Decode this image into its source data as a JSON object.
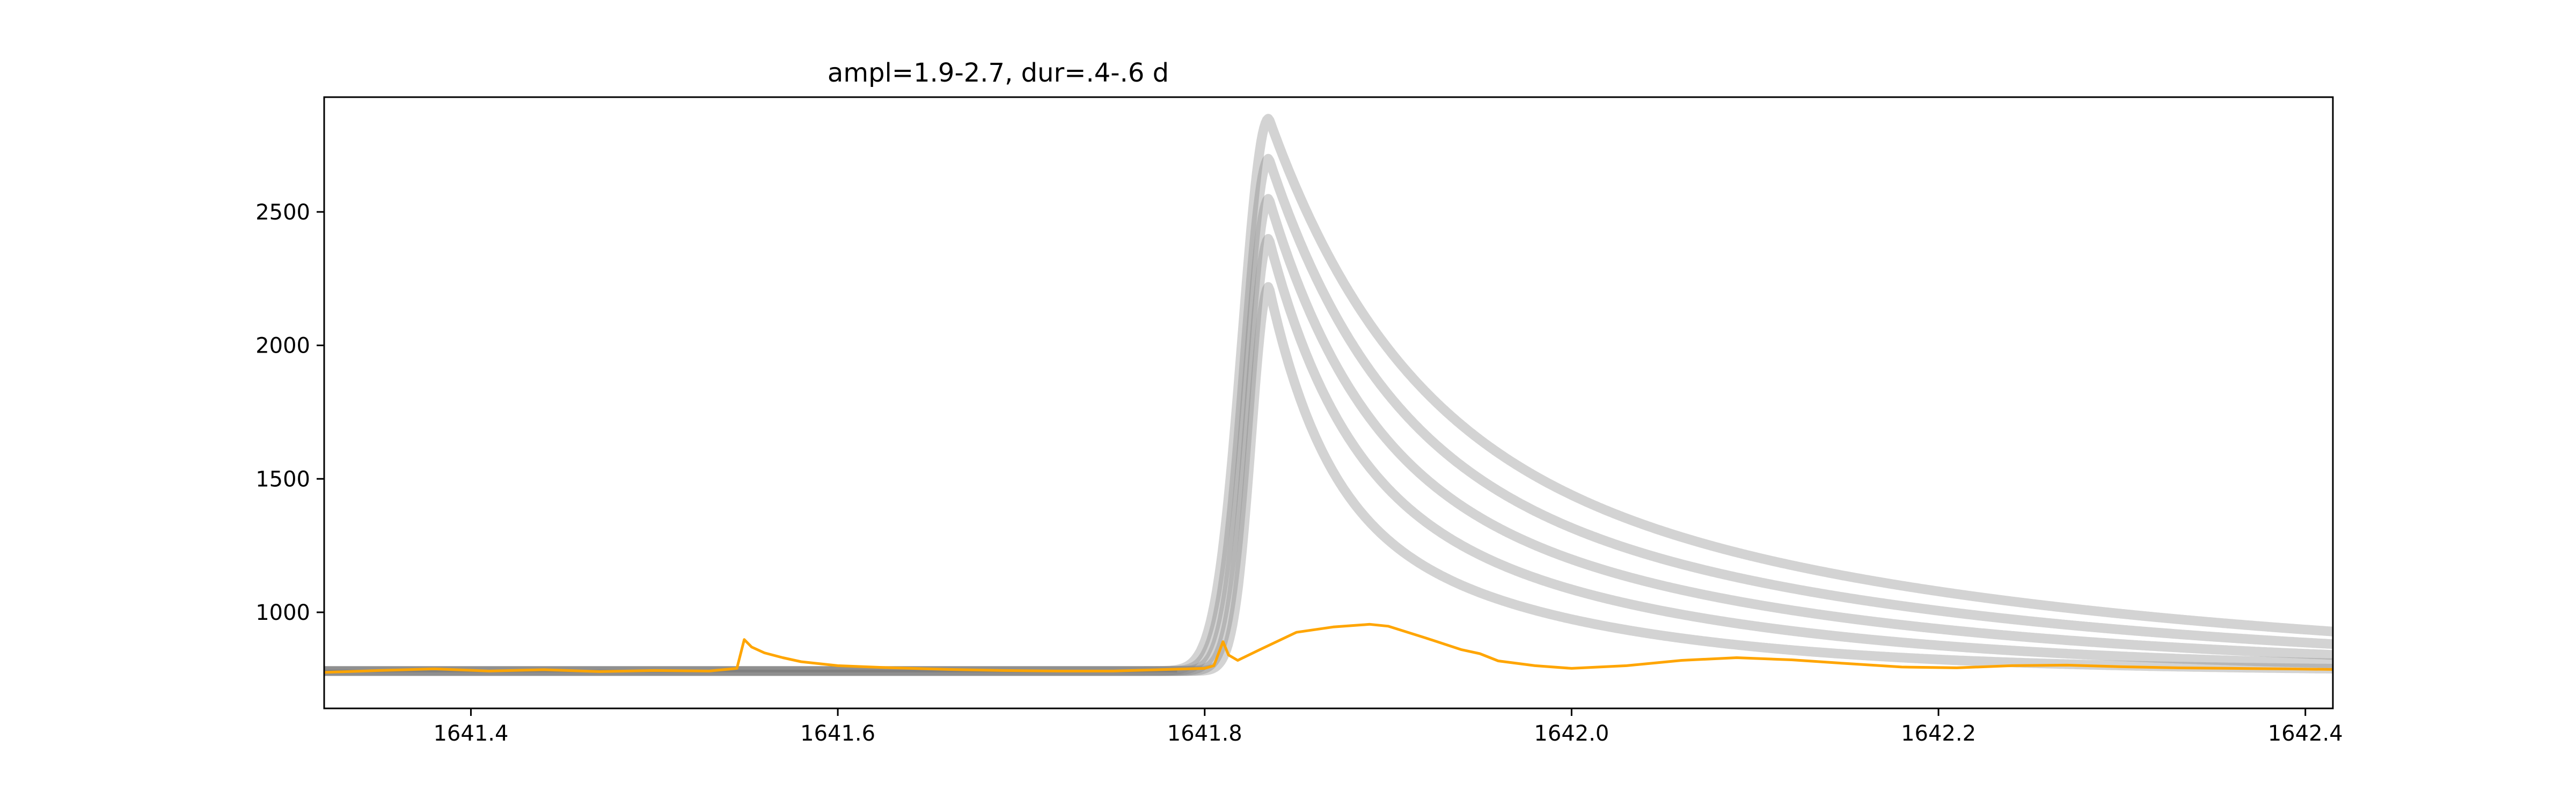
{
  "chart_data": {
    "type": "line",
    "title": "ampl=1.9-2.7, dur=.4-.6 d",
    "xlabel": "",
    "ylabel": "",
    "xlim": [
      1641.32,
      1642.415
    ],
    "ylim": [
      640,
      2930
    ],
    "grid": false,
    "x_ticks": [
      {
        "value": 1641.4,
        "label": "1641.4"
      },
      {
        "value": 1641.6,
        "label": "1641.6"
      },
      {
        "value": 1641.8,
        "label": "1641.8"
      },
      {
        "value": 1642.0,
        "label": "1642.0"
      },
      {
        "value": 1642.2,
        "label": "1642.2"
      },
      {
        "value": 1642.4,
        "label": "1642.4"
      }
    ],
    "y_ticks": [
      {
        "value": 1000,
        "label": "1000"
      },
      {
        "value": 1500,
        "label": "1500"
      },
      {
        "value": 2000,
        "label": "2000"
      },
      {
        "value": 2500,
        "label": "2500"
      }
    ],
    "colors": {
      "observed": "#ffa500",
      "model": "#808080"
    },
    "model_band": {
      "baseline": 780,
      "peak_time": 1641.835,
      "peak_values": [
        2220,
        2400,
        2550,
        2700,
        2850
      ],
      "rise_time_range": [
        0.03,
        0.045
      ],
      "decay_time_range": [
        0.03,
        0.07
      ],
      "n_curves": 5
    },
    "series": [
      {
        "x": [
          1641.32,
          1641.35,
          1641.38,
          1641.41,
          1641.44,
          1641.47,
          1641.5,
          1641.53,
          1641.545,
          1641.549,
          1641.553,
          1641.56,
          1641.57,
          1641.58,
          1641.6,
          1641.63,
          1641.66,
          1641.69,
          1641.72,
          1641.75,
          1641.78,
          1641.8,
          1641.805,
          1641.81,
          1641.813,
          1641.818,
          1641.83,
          1641.85,
          1641.87,
          1641.89,
          1641.9,
          1641.92,
          1641.94,
          1641.95,
          1641.96,
          1641.98,
          1642.0,
          1642.03,
          1642.06,
          1642.09,
          1642.12,
          1642.15,
          1642.18,
          1642.21,
          1642.24,
          1642.27,
          1642.3,
          1642.33,
          1642.36,
          1642.39,
          1642.415
        ],
        "y": [
          775,
          782,
          788,
          780,
          785,
          778,
          782,
          780,
          790,
          898,
          870,
          848,
          830,
          815,
          800,
          792,
          786,
          782,
          780,
          780,
          786,
          790,
          800,
          890,
          840,
          820,
          860,
          925,
          945,
          955,
          948,
          905,
          860,
          845,
          818,
          800,
          790,
          800,
          820,
          830,
          822,
          808,
          795,
          792,
          800,
          802,
          796,
          792,
          790,
          788,
          786
        ]
      }
    ]
  }
}
